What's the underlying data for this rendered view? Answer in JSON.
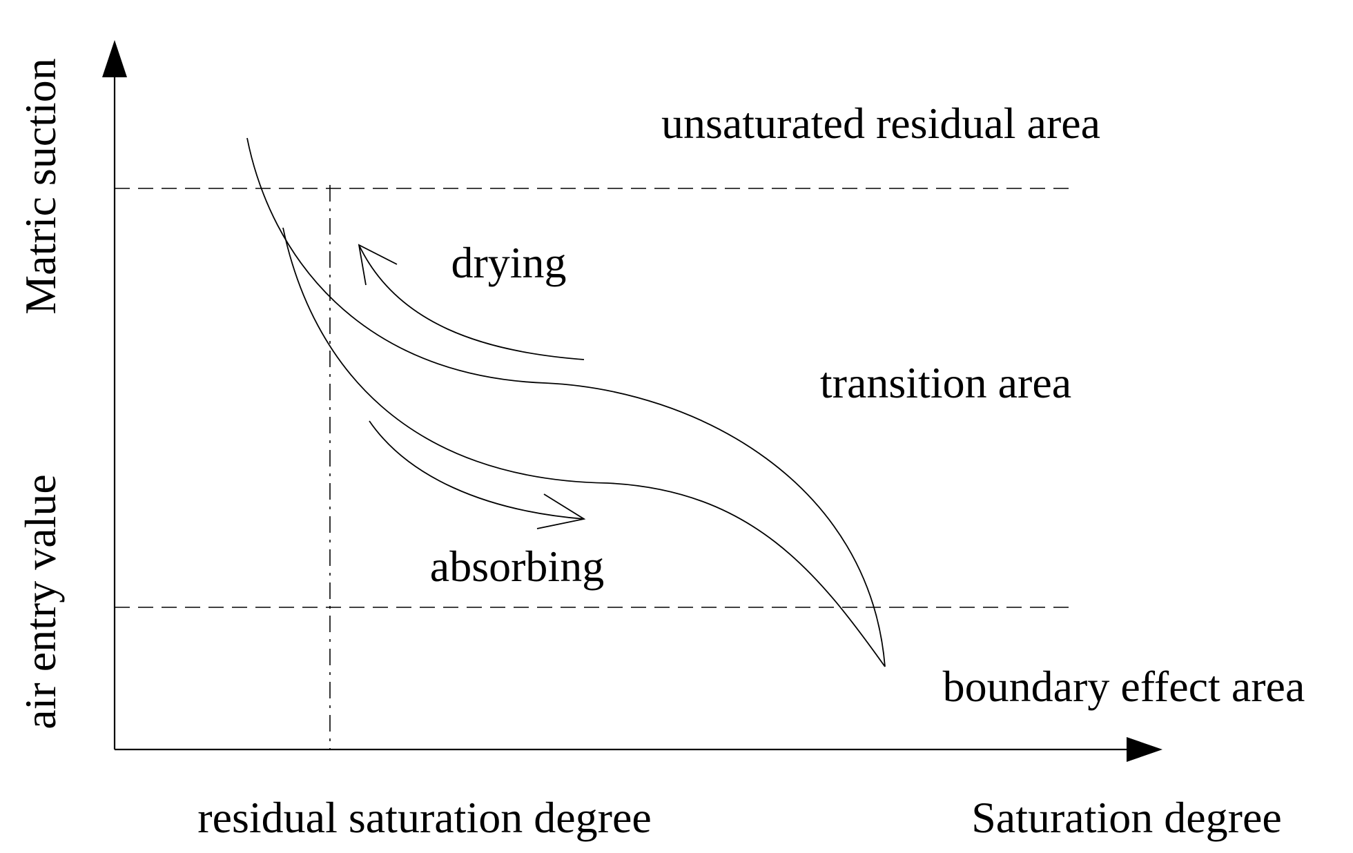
{
  "axes": {
    "y_label": "Matric suction",
    "x_label": "Saturation degree",
    "air_entry_label": "air entry value",
    "residual_label": "residual saturation degree"
  },
  "regions": {
    "unsaturated_residual": "unsaturated residual area",
    "transition": "transition area",
    "boundary_effect": "boundary effect area"
  },
  "processes": {
    "drying": "drying",
    "absorbing": "absorbing"
  },
  "colors": {
    "ink": "#000000",
    "background": "#ffffff"
  }
}
